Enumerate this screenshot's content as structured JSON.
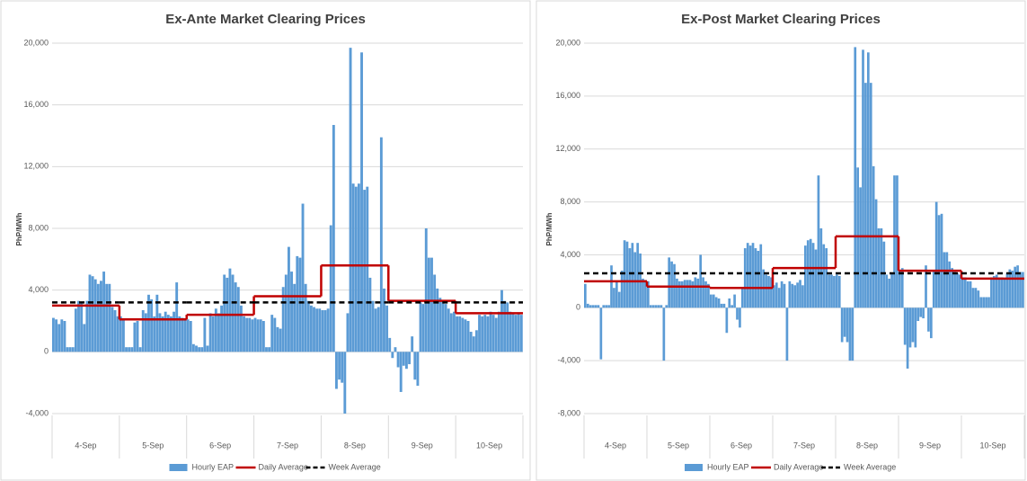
{
  "chart_data": [
    {
      "type": "combo",
      "title": "Ex-Ante Market Clearing Prices",
      "y_label": "PhP/MWh",
      "categories": [
        "4-Sep",
        "5-Sep",
        "6-Sep",
        "7-Sep",
        "8-Sep",
        "9-Sep",
        "10-Sep"
      ],
      "ylim": [
        -4000,
        20000
      ],
      "yticks": [
        {
          "value": -4000,
          "label": "-4,000"
        },
        0,
        {
          "value": 4000,
          "label": "4,000"
        },
        {
          "value": 8000,
          "label": "8,000"
        },
        {
          "value": 12000,
          "label": "12,000"
        },
        {
          "value": 16000,
          "label": "16,000"
        },
        {
          "value": 20000,
          "label": "20,000"
        }
      ],
      "grid": true,
      "series": [
        {
          "name": "Hourly EAP",
          "type": "bar",
          "color": "#5b9bd5",
          "values": [
            [
              2200,
              2100,
              1800,
              2100,
              2000,
              300,
              300,
              300,
              2800,
              3300,
              3200,
              1800,
              3300,
              5000,
              4900,
              4700,
              4400,
              4600,
              5200,
              4400,
              4400,
              2900,
              2700,
              2300
            ],
            [
              2300,
              2100,
              300,
              300,
              300,
              1900,
              2000,
              300,
              2700,
              2500,
              3700,
              3400,
              2300,
              3700,
              2500,
              2300,
              2600,
              2400,
              2300,
              2600,
              4500,
              2300,
              2200,
              2100
            ],
            [
              2100,
              2000,
              500,
              400,
              300,
              300,
              2200,
              400,
              2500,
              2300,
              2800,
              2500,
              3000,
              5000,
              4800,
              5400,
              5000,
              4500,
              4200,
              3000,
              2300,
              2200,
              2200,
              2100
            ],
            [
              2200,
              2100,
              2100,
              2000,
              300,
              300,
              2400,
              2200,
              1600,
              1500,
              4200,
              5000,
              6800,
              5200,
              4400,
              6200,
              6100,
              9600,
              4400,
              3300,
              3000,
              2900,
              2800,
              2800
            ],
            [
              2700,
              2700,
              2800,
              8200,
              14700,
              -2400,
              -1800,
              -2000,
              -4000,
              2500,
              19700,
              10900,
              10700,
              10900,
              19400,
              10500,
              10700,
              4800,
              3300,
              2800,
              2900,
              13900,
              4100,
              3000
            ],
            [
              900,
              -400,
              300,
              -1000,
              -2600,
              -900,
              -1100,
              -800,
              1000,
              -1800,
              -2200,
              3200,
              3100,
              8000,
              6100,
              6100,
              5000,
              4100,
              3500,
              3300,
              3100,
              2800,
              2500,
              2600
            ],
            [
              2300,
              2300,
              2200,
              2100,
              2000,
              1300,
              1000,
              1400,
              2400,
              2300,
              2400,
              2300,
              2600,
              2400,
              2200,
              2600,
              4000,
              3300,
              3200,
              2600,
              2500,
              2400,
              2500,
              2400
            ]
          ]
        },
        {
          "name": "Daily Average",
          "type": "step",
          "color": "#c00000",
          "values": [
            3000,
            2100,
            2400,
            3600,
            5600,
            3300,
            2500
          ]
        },
        {
          "name": "Week Average",
          "type": "dashed",
          "color": "#000000",
          "values": [
            3200,
            3200,
            3200,
            3200,
            3200,
            3200,
            3200
          ]
        }
      ]
    },
    {
      "type": "combo",
      "title": "Ex-Post Market Clearing Prices",
      "y_label": "PhP/MWh",
      "categories": [
        "4-Sep",
        "5-Sep",
        "6-Sep",
        "7-Sep",
        "8-Sep",
        "9-Sep",
        "10-Sep"
      ],
      "ylim": [
        -8000,
        20000
      ],
      "yticks": [
        {
          "value": -8000,
          "label": "-8,000"
        },
        {
          "value": -4000,
          "label": "-4,000"
        },
        0,
        {
          "value": 4000,
          "label": "4,000"
        },
        {
          "value": 8000,
          "label": "8,000"
        },
        {
          "value": 12000,
          "label": "12,000"
        },
        {
          "value": 16000,
          "label": "16,000"
        },
        {
          "value": 20000,
          "label": "20,000"
        }
      ],
      "grid": true,
      "series": [
        {
          "name": "Hourly EAP",
          "type": "bar",
          "color": "#5b9bd5",
          "values": [
            [
              1800,
              300,
              200,
              200,
              200,
              200,
              -3900,
              200,
              200,
              200,
              3200,
              1500,
              2000,
              1200,
              2800,
              5100,
              5000,
              4500,
              4900,
              4200,
              4900,
              4100,
              2200,
              2100
            ],
            [
              2000,
              200,
              200,
              200,
              200,
              200,
              -4000,
              200,
              3800,
              3500,
              3300,
              2200,
              2000,
              2000,
              2100,
              2100,
              2100,
              2000,
              2300,
              2200,
              4000,
              2300,
              2000,
              1800
            ],
            [
              1000,
              1000,
              800,
              700,
              300,
              300,
              -1900,
              700,
              200,
              1000,
              -900,
              -1500,
              1500,
              4500,
              4900,
              4700,
              4900,
              4500,
              4300,
              4800,
              2900,
              2500,
              2400,
              2300
            ],
            [
              1700,
              1900,
              1500,
              2000,
              1800,
              -4000,
              2000,
              1800,
              1700,
              1900,
              2100,
              1700,
              4700,
              5100,
              5200,
              4900,
              4400,
              10000,
              6000,
              4800,
              4500,
              2500,
              2500,
              2400
            ],
            [
              2500,
              2400,
              -2600,
              -2200,
              -2600,
              -4000,
              -4000,
              19700,
              10600,
              9100,
              19500,
              17000,
              19300,
              17000,
              10700,
              8200,
              6000,
              6000,
              5000,
              2500,
              2200,
              2600,
              10000,
              10000
            ],
            [
              2800,
              3000,
              -2800,
              -4600,
              -3000,
              -2600,
              -3000,
              -1000,
              -700,
              -800,
              3200,
              -1800,
              -2300,
              2800,
              8000,
              7000,
              7100,
              4200,
              4200,
              3500,
              3000,
              2700,
              2600,
              2500
            ],
            [
              2300,
              2300,
              2000,
              2000,
              1500,
              1500,
              1300,
              800,
              800,
              800,
              800,
              2300,
              2400,
              2500,
              2300,
              2300,
              2200,
              2600,
              2900,
              2800,
              3100,
              3200,
              2700,
              2700
            ]
          ]
        },
        {
          "name": "Daily Average",
          "type": "step",
          "color": "#c00000",
          "values": [
            2000,
            1600,
            1500,
            3000,
            5400,
            2800,
            2200
          ]
        },
        {
          "name": "Week Average",
          "type": "dashed",
          "color": "#000000",
          "values": [
            2600,
            2600,
            2600,
            2600,
            2600,
            2600,
            2600
          ]
        }
      ]
    }
  ]
}
